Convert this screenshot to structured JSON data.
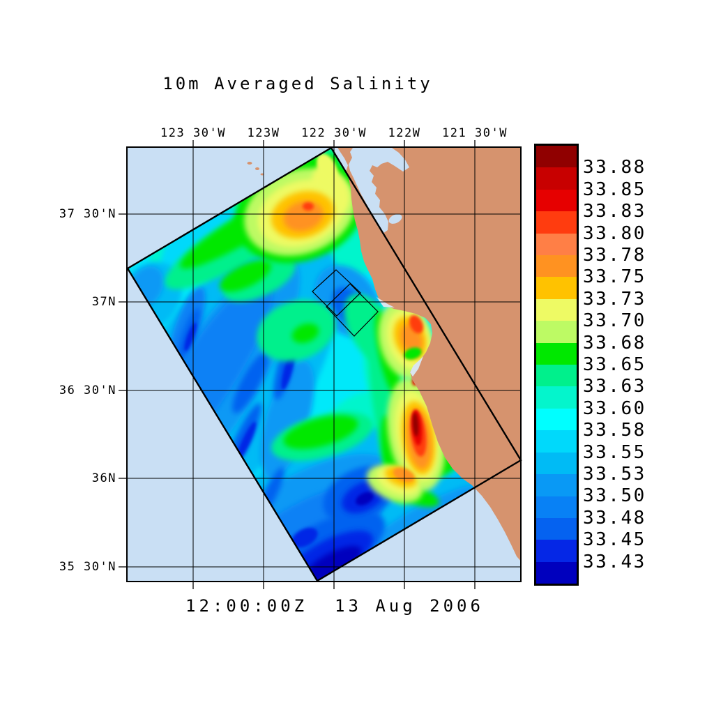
{
  "figure": {
    "title": "10m Averaged Salinity",
    "timestamp": "12:00:00Z  13 Aug 2006"
  },
  "axes": {
    "top_tick_labels": [
      "123 30'W",
      "123W",
      "122 30'W",
      "122W",
      "121 30'W"
    ],
    "left_tick_labels": [
      "37 30'N",
      "37N",
      "36 30'N",
      "36N",
      "35 30'N"
    ],
    "grid": "on"
  },
  "colorbar": {
    "tick_labels": [
      "33.88",
      "33.85",
      "33.83",
      "33.80",
      "33.78",
      "33.75",
      "33.73",
      "33.70",
      "33.68",
      "33.65",
      "33.63",
      "33.60",
      "33.58",
      "33.55",
      "33.53",
      "33.50",
      "33.48",
      "33.45",
      "33.43"
    ],
    "segment_colors_top_to_bottom": [
      "#900000",
      "#C80000",
      "#E60000",
      "#FF3C0F",
      "#FF7F46",
      "#FF9221",
      "#FFC200",
      "#EEFA64",
      "#BDFA64",
      "#00E800",
      "#00F08C",
      "#04F5CC",
      "#00FFFF",
      "#00D9FB",
      "#00BBF5",
      "#0999F5",
      "#0881F5",
      "#0562F0",
      "#0527E6",
      "#0000BE"
    ],
    "border_color": "#000000"
  },
  "map": {
    "ocean_color": "#C9DFF4",
    "land_color": "#D6936E",
    "gridline_color": "#000000",
    "region": "Central California coast, San Francisco Bay to south of Monterey Bay",
    "overlays": [
      "rotated model domain outline",
      "two small nested box outlines near 37N 122 30'W",
      "latitude-longitude grid"
    ]
  },
  "chart_data": {
    "type": "heatmap",
    "title": "10m Averaged Salinity",
    "subtitle": "12:00:00Z  13 Aug 2006",
    "x_tick_labels": [
      "123 30'W",
      "123W",
      "122 30'W",
      "122W",
      "121 30'W"
    ],
    "y_tick_labels": [
      "37 30'N",
      "37N",
      "36 30'N",
      "36N",
      "35 30'N"
    ],
    "colorbar_levels": [
      33.43,
      33.45,
      33.48,
      33.5,
      33.53,
      33.55,
      33.58,
      33.6,
      33.63,
      33.65,
      33.68,
      33.7,
      33.73,
      33.75,
      33.78,
      33.8,
      33.83,
      33.85,
      33.88
    ],
    "palette_low_to_high": [
      "#0000BE",
      "#0527E6",
      "#0562F0",
      "#0881F5",
      "#0999F5",
      "#00BBF5",
      "#00D9FB",
      "#00FFFF",
      "#04F5CC",
      "#00F08C",
      "#00E800",
      "#BDFA64",
      "#EEFA64",
      "#FFC200",
      "#FF9221",
      "#FF7F46",
      "#FF3C0F",
      "#E60000",
      "#C80000",
      "#900000"
    ],
    "legend_position": "right colorbar",
    "grid": "on",
    "features": [
      {
        "area": "offshore patch near 37.3-37.6N, 122.7-123.2W",
        "approx_value": "33.70-33.78",
        "appearance": "yellow-orange high salinity patch"
      },
      {
        "area": "nearshore band south of Monterey Bay, 36.3-36.7N",
        "approx_value": "33.78-33.88",
        "appearance": "narrow red to dark-red coastal upwelling plume"
      },
      {
        "area": "coastal patch Ano Nuevo to Monterey Bay, 36.8-37.1N",
        "approx_value": "33.70-33.78",
        "appearance": "orange patch hugging coast"
      },
      {
        "area": "southwest edge and southern tip of domain",
        "approx_value": "33.43-33.53",
        "appearance": "dark blue low-salinity water"
      },
      {
        "area": "central interior of domain",
        "approx_value": "33.55-33.63",
        "appearance": "cyan background with turquoise filaments"
      },
      {
        "area": "filaments ringing the interior",
        "approx_value": "33.63-33.68",
        "appearance": "green bands and eddies"
      }
    ]
  }
}
